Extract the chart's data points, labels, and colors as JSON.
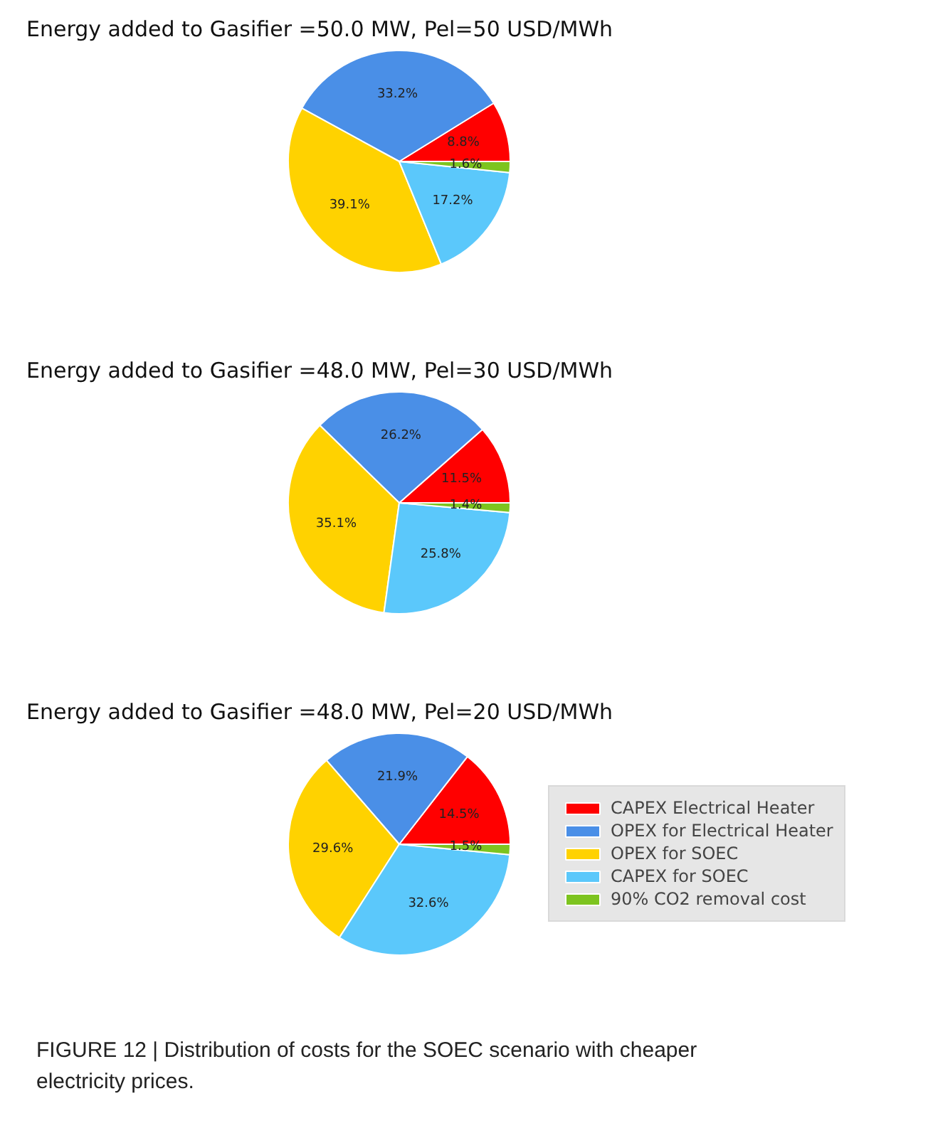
{
  "chart_data": [
    {
      "type": "pie",
      "title": "Energy added to Gasifier =50.0 MW, Pel=50 USD/MWh",
      "categories": [
        null,
        null,
        null,
        null,
        null
      ],
      "values": [
        8.8,
        33.2,
        39.1,
        17.2,
        1.6
      ],
      "colors": [
        "#ff0000",
        "#4a8fe7",
        "#ffd200",
        "#5bc8fb",
        "#7dc41f"
      ],
      "value_labels": [
        "8.8%",
        "33.2%",
        "39.1%",
        "17.2%",
        "1.6%"
      ]
    },
    {
      "type": "pie",
      "title": "Energy added to Gasifier =48.0 MW, Pel=30 USD/MWh",
      "categories": [
        null,
        null,
        null,
        null,
        null
      ],
      "values": [
        11.5,
        26.2,
        35.1,
        25.8,
        1.4
      ],
      "colors": [
        "#ff0000",
        "#4a8fe7",
        "#ffd200",
        "#5bc8fb",
        "#7dc41f"
      ],
      "value_labels": [
        "11.5%",
        "26.2%",
        "35.1%",
        "25.8%",
        "1.4%"
      ]
    },
    {
      "type": "pie",
      "title": "Energy added to Gasifier =48.0 MW, Pel=20 USD/MWh",
      "categories": [
        "CAPEX Electrical Heater",
        "OPEX for Electrical Heater",
        "OPEX for SOEC",
        "CAPEX for SOEC",
        "90% CO2 removal cost"
      ],
      "values": [
        14.5,
        21.9,
        29.6,
        32.6,
        1.5
      ],
      "colors": [
        "#ff0000",
        "#4a8fe7",
        "#ffd200",
        "#5bc8fb",
        "#7dc41f"
      ],
      "value_labels": [
        "14.5%",
        "21.9%",
        "29.6%",
        "32.6%",
        "1.5%"
      ],
      "legend": "right",
      "annotations": [
        "FIGURE 12 | Distribution of costs for the SOEC scenario with cheaper electricity prices."
      ]
    }
  ]
}
